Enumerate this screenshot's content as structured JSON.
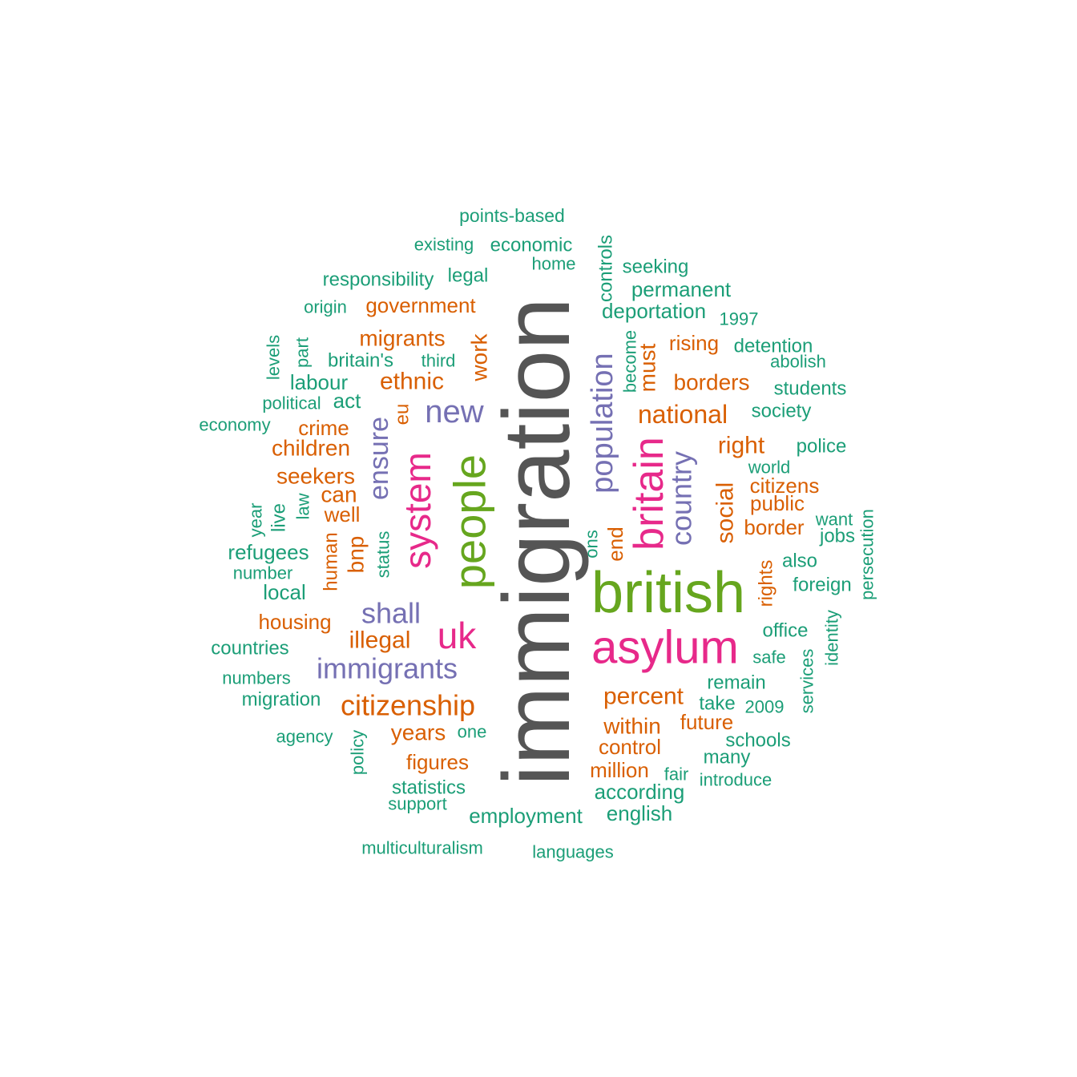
{
  "palette": {
    "teal": "#1b9e77",
    "orange": "#d95f02",
    "purple": "#7570b3",
    "magenta": "#e7298a",
    "green": "#66a61e",
    "gray": "#555555"
  },
  "words": [
    {
      "text": "immigration",
      "tier": "gray",
      "vertical": true
    },
    {
      "text": "british",
      "tier": "green",
      "vertical": false
    },
    {
      "text": "people",
      "tier": "green",
      "vertical": true
    },
    {
      "text": "asylum",
      "tier": "magenta",
      "vertical": false
    },
    {
      "text": "britain",
      "tier": "magenta",
      "vertical": true
    },
    {
      "text": "system",
      "tier": "magenta",
      "vertical": true
    },
    {
      "text": "uk",
      "tier": "magenta",
      "vertical": false
    },
    {
      "text": "population",
      "tier": "purple",
      "vertical": true
    },
    {
      "text": "country",
      "tier": "purple",
      "vertical": true
    },
    {
      "text": "immigrants",
      "tier": "purple",
      "vertical": false
    },
    {
      "text": "new",
      "tier": "purple",
      "vertical": false
    },
    {
      "text": "ensure",
      "tier": "purple",
      "vertical": true
    },
    {
      "text": "shall",
      "tier": "purple",
      "vertical": false
    },
    {
      "text": "citizenship",
      "tier": "orange",
      "vertical": false
    },
    {
      "text": "national",
      "tier": "orange",
      "vertical": false
    },
    {
      "text": "social",
      "tier": "orange",
      "vertical": true
    },
    {
      "text": "percent",
      "tier": "orange",
      "vertical": false
    },
    {
      "text": "illegal",
      "tier": "orange",
      "vertical": false
    },
    {
      "text": "migrants",
      "tier": "orange",
      "vertical": false
    },
    {
      "text": "borders",
      "tier": "orange",
      "vertical": false
    },
    {
      "text": "government",
      "tier": "orange",
      "vertical": false
    },
    {
      "text": "ethnic",
      "tier": "orange",
      "vertical": false
    },
    {
      "text": "right",
      "tier": "orange",
      "vertical": false
    },
    {
      "text": "must",
      "tier": "orange",
      "vertical": true
    },
    {
      "text": "work",
      "tier": "orange",
      "vertical": true
    },
    {
      "text": "years",
      "tier": "orange",
      "vertical": false
    },
    {
      "text": "within",
      "tier": "orange",
      "vertical": false
    },
    {
      "text": "children",
      "tier": "orange",
      "vertical": false
    },
    {
      "text": "seekers",
      "tier": "orange",
      "vertical": false
    },
    {
      "text": "can",
      "tier": "orange",
      "vertical": false
    },
    {
      "text": "bnp",
      "tier": "orange",
      "vertical": true
    },
    {
      "text": "figures",
      "tier": "orange",
      "vertical": false
    },
    {
      "text": "housing",
      "tier": "orange",
      "vertical": false
    },
    {
      "text": "crime",
      "tier": "orange",
      "vertical": false
    },
    {
      "text": "well",
      "tier": "orange",
      "vertical": false
    },
    {
      "text": "rising",
      "tier": "orange",
      "vertical": false
    },
    {
      "text": "citizens",
      "tier": "orange",
      "vertical": false
    },
    {
      "text": "public",
      "tier": "orange",
      "vertical": false
    },
    {
      "text": "border",
      "tier": "orange",
      "vertical": false
    },
    {
      "text": "control",
      "tier": "orange",
      "vertical": false
    },
    {
      "text": "million",
      "tier": "orange",
      "vertical": false
    },
    {
      "text": "future",
      "tier": "orange",
      "vertical": false
    },
    {
      "text": "end",
      "tier": "orange",
      "vertical": true
    },
    {
      "text": "eu",
      "tier": "orange",
      "vertical": true
    },
    {
      "text": "human",
      "tier": "orange",
      "vertical": true
    },
    {
      "text": "rights",
      "tier": "orange",
      "vertical": true
    },
    {
      "text": "points-based",
      "tier": "teal",
      "vertical": false
    },
    {
      "text": "existing",
      "tier": "teal",
      "vertical": false
    },
    {
      "text": "economic",
      "tier": "teal",
      "vertical": false
    },
    {
      "text": "home",
      "tier": "teal",
      "vertical": false
    },
    {
      "text": "controls",
      "tier": "teal",
      "vertical": true
    },
    {
      "text": "seeking",
      "tier": "teal",
      "vertical": false
    },
    {
      "text": "permanent",
      "tier": "teal",
      "vertical": false
    },
    {
      "text": "deportation",
      "tier": "teal",
      "vertical": false
    },
    {
      "text": "1997",
      "tier": "teal",
      "vertical": false
    },
    {
      "text": "responsibility",
      "tier": "teal",
      "vertical": false
    },
    {
      "text": "legal",
      "tier": "teal",
      "vertical": false
    },
    {
      "text": "origin",
      "tier": "teal",
      "vertical": false
    },
    {
      "text": "detention",
      "tier": "teal",
      "vertical": false
    },
    {
      "text": "abolish",
      "tier": "teal",
      "vertical": false
    },
    {
      "text": "students",
      "tier": "teal",
      "vertical": false
    },
    {
      "text": "society",
      "tier": "teal",
      "vertical": false
    },
    {
      "text": "police",
      "tier": "teal",
      "vertical": false
    },
    {
      "text": "world",
      "tier": "teal",
      "vertical": false
    },
    {
      "text": "want",
      "tier": "teal",
      "vertical": false
    },
    {
      "text": "jobs",
      "tier": "teal",
      "vertical": false
    },
    {
      "text": "persecution",
      "tier": "teal",
      "vertical": true
    },
    {
      "text": "also",
      "tier": "teal",
      "vertical": false
    },
    {
      "text": "foreign",
      "tier": "teal",
      "vertical": false
    },
    {
      "text": "office",
      "tier": "teal",
      "vertical": false
    },
    {
      "text": "identity",
      "tier": "teal",
      "vertical": true
    },
    {
      "text": "safe",
      "tier": "teal",
      "vertical": false
    },
    {
      "text": "services",
      "tier": "teal",
      "vertical": true
    },
    {
      "text": "remain",
      "tier": "teal",
      "vertical": false
    },
    {
      "text": "take",
      "tier": "teal",
      "vertical": false
    },
    {
      "text": "2009",
      "tier": "teal",
      "vertical": false
    },
    {
      "text": "schools",
      "tier": "teal",
      "vertical": false
    },
    {
      "text": "many",
      "tier": "teal",
      "vertical": false
    },
    {
      "text": "fair",
      "tier": "teal",
      "vertical": false
    },
    {
      "text": "introduce",
      "tier": "teal",
      "vertical": false
    },
    {
      "text": "according",
      "tier": "teal",
      "vertical": false
    },
    {
      "text": "english",
      "tier": "teal",
      "vertical": false
    },
    {
      "text": "employment",
      "tier": "teal",
      "vertical": false
    },
    {
      "text": "languages",
      "tier": "teal",
      "vertical": false
    },
    {
      "text": "multiculturalism",
      "tier": "teal",
      "vertical": false
    },
    {
      "text": "support",
      "tier": "teal",
      "vertical": false
    },
    {
      "text": "statistics",
      "tier": "teal",
      "vertical": false
    },
    {
      "text": "one",
      "tier": "teal",
      "vertical": false
    },
    {
      "text": "policy",
      "tier": "teal",
      "vertical": true
    },
    {
      "text": "agency",
      "tier": "teal",
      "vertical": false
    },
    {
      "text": "migration",
      "tier": "teal",
      "vertical": false
    },
    {
      "text": "numbers",
      "tier": "teal",
      "vertical": false
    },
    {
      "text": "countries",
      "tier": "teal",
      "vertical": false
    },
    {
      "text": "local",
      "tier": "teal",
      "vertical": false
    },
    {
      "text": "number",
      "tier": "teal",
      "vertical": false
    },
    {
      "text": "refugees",
      "tier": "teal",
      "vertical": false
    },
    {
      "text": "year",
      "tier": "teal",
      "vertical": true
    },
    {
      "text": "live",
      "tier": "teal",
      "vertical": true
    },
    {
      "text": "law",
      "tier": "teal",
      "vertical": true
    },
    {
      "text": "status",
      "tier": "teal",
      "vertical": true
    },
    {
      "text": "economy",
      "tier": "teal",
      "vertical": false
    },
    {
      "text": "political",
      "tier": "teal",
      "vertical": false
    },
    {
      "text": "act",
      "tier": "teal",
      "vertical": false
    },
    {
      "text": "labour",
      "tier": "teal",
      "vertical": false
    },
    {
      "text": "levels",
      "tier": "teal",
      "vertical": true
    },
    {
      "text": "part",
      "tier": "teal",
      "vertical": true
    },
    {
      "text": "britain's",
      "tier": "teal",
      "vertical": false
    },
    {
      "text": "third",
      "tier": "teal",
      "vertical": false
    },
    {
      "text": "become",
      "tier": "teal",
      "vertical": true
    },
    {
      "text": "ons",
      "tier": "teal",
      "vertical": true
    }
  ]
}
